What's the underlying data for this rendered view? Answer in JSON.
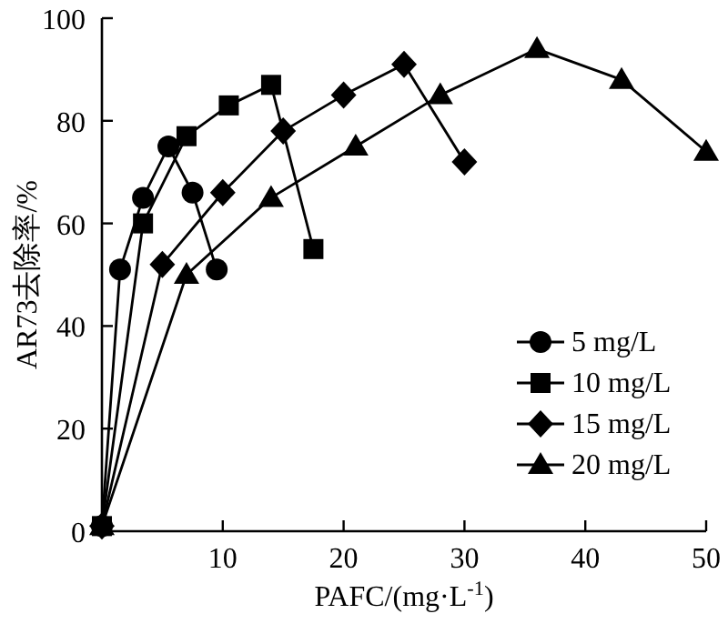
{
  "chart_data": {
    "type": "line",
    "xlabel": "PAFC/(mg·L$^{-1}$)",
    "ylabel": "AR73去除率/%",
    "xlim": [
      0,
      50
    ],
    "ylim": [
      0,
      100
    ],
    "xticks": [
      10,
      20,
      30,
      40,
      50
    ],
    "yticks": [
      0,
      20,
      40,
      60,
      80,
      100
    ],
    "legend": "bottom right",
    "grid": false,
    "line_style": "solid",
    "series": [
      {
        "name": "5 mg/L",
        "color": "#000000",
        "marker": "circle",
        "x": [
          0,
          1.5,
          3.4,
          5.5,
          7.5,
          9.5
        ],
        "values": [
          1,
          51,
          65,
          75,
          66,
          51
        ]
      },
      {
        "name": "10 mg/L",
        "color": "#000000",
        "marker": "square",
        "x": [
          0,
          3.4,
          7,
          10.5,
          14,
          17.5
        ],
        "values": [
          1,
          60,
          77,
          83,
          87,
          55
        ]
      },
      {
        "name": "15 mg/L",
        "color": "#000000",
        "marker": "diamond",
        "x": [
          0,
          5,
          10,
          15,
          20,
          25,
          30
        ],
        "values": [
          1,
          52,
          66,
          78,
          85,
          91,
          72
        ]
      },
      {
        "name": "20 mg/L",
        "color": "#000000",
        "marker": "triangle",
        "x": [
          0,
          7,
          14,
          21,
          28,
          36,
          43,
          50
        ],
        "values": [
          1,
          50,
          65,
          75,
          85,
          94,
          88,
          74
        ]
      }
    ]
  }
}
